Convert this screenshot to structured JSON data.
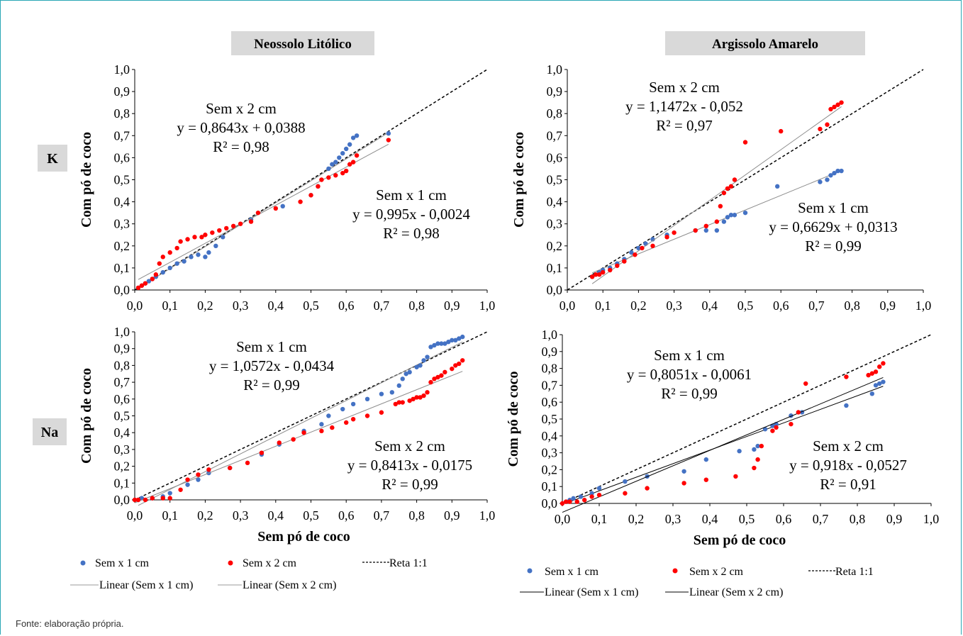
{
  "caption": "Fonte: elaboração própria.",
  "columns": [
    "Neossolo Litólico",
    "Argissolo Amarelo"
  ],
  "rows": [
    "K",
    "Na"
  ],
  "colors": {
    "s1": "#4472c4",
    "s2": "#ff0000",
    "header_bg": "#d9d9d9",
    "frame": "#2aa7b5"
  },
  "legend": {
    "left": {
      "s1": "Sem x 1 cm",
      "s2": "Sem x 2 cm",
      "ref": "Reta 1:1",
      "lin1": "Linear (Sem x 1 cm)",
      "lin2": "Linear (Sem x 2 cm)"
    },
    "right": {
      "s1": "Sem x 1 cm",
      "s2": "Sem x 2 cm",
      "ref": "Reta 1:1",
      "lin1": "Linear (Sem x 1 cm)",
      "lin2": "Linear (Sem x 2 cm)"
    }
  },
  "chart_data": [
    {
      "id": "NL-K",
      "type": "scatter",
      "xlim": [
        0,
        1
      ],
      "ylim": [
        0,
        1
      ],
      "xticks": [
        "0,0",
        "0,1",
        "0,2",
        "0,3",
        "0,4",
        "0,5",
        "0,6",
        "0,7",
        "0,8",
        "0,9",
        "1,0"
      ],
      "yticks": [
        "0,0",
        "0,1",
        "0,2",
        "0,3",
        "0,4",
        "0,5",
        "0,6",
        "0,7",
        "0,8",
        "0,9",
        "1,0"
      ],
      "ylabel": "Com pó de coco",
      "xlabel": "",
      "annotations": [
        {
          "lines": [
            "Sem x 2 cm",
            "y = 0,8643x + 0,0388",
            "R² = 0,98"
          ],
          "pos": "upper-left"
        },
        {
          "lines": [
            "Sem x 1 cm",
            "y = 0,995x - 0,0024",
            "R² = 0,98"
          ],
          "pos": "lower-right"
        }
      ],
      "series": [
        {
          "name": "Sem x 1 cm",
          "trend": [
            0.995,
            -0.0024
          ],
          "trend_style": "thin-gray",
          "x": [
            0.01,
            0.02,
            0.03,
            0.04,
            0.05,
            0.06,
            0.08,
            0.1,
            0.12,
            0.14,
            0.16,
            0.18,
            0.2,
            0.21,
            0.23,
            0.25,
            0.33,
            0.42,
            0.5,
            0.52,
            0.55,
            0.56,
            0.57,
            0.58,
            0.59,
            0.6,
            0.61,
            0.62,
            0.63,
            0.72
          ],
          "y": [
            0.01,
            0.02,
            0.03,
            0.04,
            0.05,
            0.06,
            0.08,
            0.1,
            0.12,
            0.13,
            0.15,
            0.16,
            0.15,
            0.17,
            0.2,
            0.24,
            0.32,
            0.38,
            0.43,
            0.47,
            0.55,
            0.57,
            0.58,
            0.6,
            0.62,
            0.64,
            0.66,
            0.69,
            0.7,
            0.71
          ]
        },
        {
          "name": "Sem x 2 cm",
          "trend": [
            0.8643,
            0.0388
          ],
          "trend_style": "thin-gray",
          "x": [
            0.01,
            0.02,
            0.03,
            0.05,
            0.06,
            0.07,
            0.08,
            0.1,
            0.12,
            0.13,
            0.15,
            0.17,
            0.19,
            0.2,
            0.22,
            0.24,
            0.26,
            0.28,
            0.3,
            0.33,
            0.35,
            0.4,
            0.47,
            0.5,
            0.52,
            0.53,
            0.55,
            0.57,
            0.59,
            0.6,
            0.61,
            0.62,
            0.63,
            0.72
          ],
          "y": [
            0.01,
            0.02,
            0.03,
            0.05,
            0.07,
            0.12,
            0.15,
            0.17,
            0.19,
            0.22,
            0.23,
            0.24,
            0.24,
            0.25,
            0.26,
            0.27,
            0.28,
            0.29,
            0.3,
            0.31,
            0.35,
            0.37,
            0.4,
            0.43,
            0.47,
            0.5,
            0.51,
            0.52,
            0.53,
            0.54,
            0.57,
            0.58,
            0.61,
            0.68
          ]
        }
      ]
    },
    {
      "id": "AA-K",
      "type": "scatter",
      "xlim": [
        0,
        1
      ],
      "ylim": [
        0,
        1
      ],
      "xticks": [
        "0,0",
        "0,1",
        "0,2",
        "0,3",
        "0,4",
        "0,5",
        "0,6",
        "0,7",
        "0,8",
        "0,9",
        "1,0"
      ],
      "yticks": [
        "0,0",
        "0,1",
        "0,2",
        "0,3",
        "0,4",
        "0,5",
        "0,6",
        "0,7",
        "0,8",
        "0,9",
        "1,0"
      ],
      "ylabel": "Com pó de coco",
      "xlabel": "",
      "annotations": [
        {
          "lines": [
            "Sem x 2 cm",
            "y = 1,1472x - 0,052",
            "R² = 0,97"
          ],
          "pos": "upper-left"
        },
        {
          "lines": [
            "Sem x 1 cm",
            "y = 0,6629x + 0,0313",
            "R² = 0,99"
          ],
          "pos": "lower-right"
        }
      ],
      "series": [
        {
          "name": "Sem x 1 cm",
          "trend": [
            0.6629,
            0.0313
          ],
          "trend_style": "thin-gray",
          "x": [
            0.07,
            0.08,
            0.09,
            0.1,
            0.12,
            0.14,
            0.16,
            0.18,
            0.2,
            0.22,
            0.24,
            0.28,
            0.36,
            0.39,
            0.42,
            0.44,
            0.45,
            0.46,
            0.47,
            0.5,
            0.59,
            0.71,
            0.73,
            0.74,
            0.75,
            0.76,
            0.77
          ],
          "y": [
            0.06,
            0.07,
            0.08,
            0.09,
            0.1,
            0.12,
            0.14,
            0.17,
            0.19,
            0.21,
            0.23,
            0.25,
            0.27,
            0.27,
            0.27,
            0.31,
            0.33,
            0.34,
            0.34,
            0.35,
            0.47,
            0.49,
            0.5,
            0.52,
            0.53,
            0.54,
            0.54
          ]
        },
        {
          "name": "Sem x 2 cm",
          "trend": [
            1.1472,
            -0.052
          ],
          "trend_style": "thin-gray",
          "x": [
            0.07,
            0.08,
            0.09,
            0.1,
            0.12,
            0.14,
            0.16,
            0.19,
            0.21,
            0.24,
            0.28,
            0.3,
            0.36,
            0.39,
            0.42,
            0.43,
            0.44,
            0.45,
            0.46,
            0.47,
            0.5,
            0.6,
            0.71,
            0.73,
            0.74,
            0.75,
            0.76,
            0.77
          ],
          "y": [
            0.06,
            0.07,
            0.07,
            0.08,
            0.09,
            0.11,
            0.13,
            0.16,
            0.19,
            0.2,
            0.24,
            0.26,
            0.27,
            0.29,
            0.31,
            0.38,
            0.44,
            0.46,
            0.47,
            0.5,
            0.67,
            0.72,
            0.73,
            0.75,
            0.82,
            0.83,
            0.84,
            0.85
          ]
        }
      ]
    },
    {
      "id": "NL-Na",
      "type": "scatter",
      "xlim": [
        0,
        1
      ],
      "ylim": [
        0,
        1
      ],
      "xticks": [
        "0,0",
        "0,1",
        "0,2",
        "0,3",
        "0,4",
        "0,5",
        "0,6",
        "0,7",
        "0,8",
        "0,9",
        "1,0"
      ],
      "yticks": [
        "0,0",
        "0,1",
        "0,2",
        "0,3",
        "0,4",
        "0,5",
        "0,6",
        "0,7",
        "0,8",
        "0,9",
        "1,0"
      ],
      "ylabel": "Com pó de coco",
      "xlabel": "Sem pó de coco",
      "annotations": [
        {
          "lines": [
            "Sem x 1 cm",
            "y = 1,0572x - 0,0434",
            "R² = 0,99"
          ],
          "pos": "upper-left"
        },
        {
          "lines": [
            "Sem x 2 cm",
            "y = 0,8413x - 0,0175",
            "R² = 0,99"
          ],
          "pos": "lower-right"
        }
      ],
      "series": [
        {
          "name": "Sem x 1 cm",
          "trend": [
            1.0572,
            -0.0434
          ],
          "trend_style": "thin-gray",
          "x": [
            0.01,
            0.02,
            0.05,
            0.08,
            0.1,
            0.15,
            0.18,
            0.21,
            0.27,
            0.36,
            0.41,
            0.48,
            0.53,
            0.55,
            0.59,
            0.62,
            0.66,
            0.7,
            0.73,
            0.75,
            0.76,
            0.77,
            0.78,
            0.8,
            0.81,
            0.82,
            0.83,
            0.84,
            0.85,
            0.86,
            0.87,
            0.88,
            0.89,
            0.9,
            0.91,
            0.92,
            0.93
          ],
          "y": [
            0.0,
            0.01,
            0.01,
            0.02,
            0.04,
            0.09,
            0.12,
            0.16,
            0.19,
            0.27,
            0.33,
            0.41,
            0.45,
            0.5,
            0.54,
            0.57,
            0.6,
            0.63,
            0.64,
            0.68,
            0.72,
            0.75,
            0.76,
            0.79,
            0.8,
            0.83,
            0.85,
            0.91,
            0.92,
            0.93,
            0.93,
            0.93,
            0.94,
            0.95,
            0.95,
            0.96,
            0.97
          ]
        },
        {
          "name": "Sem x 2 cm",
          "trend": [
            0.8413,
            -0.0175
          ],
          "trend_style": "thin-gray",
          "x": [
            0.0,
            0.01,
            0.03,
            0.05,
            0.08,
            0.1,
            0.13,
            0.15,
            0.18,
            0.21,
            0.27,
            0.32,
            0.36,
            0.41,
            0.45,
            0.48,
            0.53,
            0.56,
            0.6,
            0.62,
            0.66,
            0.7,
            0.74,
            0.75,
            0.76,
            0.78,
            0.79,
            0.8,
            0.81,
            0.82,
            0.83,
            0.84,
            0.85,
            0.86,
            0.87,
            0.88,
            0.9,
            0.91,
            0.92,
            0.93
          ],
          "y": [
            0.0,
            0.0,
            0.0,
            0.01,
            0.01,
            0.01,
            0.06,
            0.12,
            0.15,
            0.18,
            0.19,
            0.22,
            0.28,
            0.34,
            0.36,
            0.4,
            0.41,
            0.43,
            0.46,
            0.48,
            0.5,
            0.52,
            0.57,
            0.58,
            0.58,
            0.59,
            0.6,
            0.61,
            0.61,
            0.62,
            0.64,
            0.7,
            0.72,
            0.73,
            0.74,
            0.76,
            0.78,
            0.8,
            0.81,
            0.83
          ]
        }
      ]
    },
    {
      "id": "AA-Na",
      "type": "scatter",
      "xlim": [
        0,
        1
      ],
      "ylim": [
        0,
        1
      ],
      "xticks": [
        "0,0",
        "0,1",
        "0,2",
        "0,3",
        "0,4",
        "0,5",
        "0,6",
        "0,7",
        "0,8",
        "0,9",
        "1,0"
      ],
      "yticks": [
        "0,0",
        "0,1",
        "0,2",
        "0,3",
        "0,4",
        "0,5",
        "0,6",
        "0,7",
        "0,8",
        "0,9",
        "1,0"
      ],
      "ylabel": "Com pó de coco",
      "xlabel": "Sem pó de coco",
      "annotations": [
        {
          "lines": [
            "Sem x 1 cm",
            "y = 0,8051x - 0,0061",
            "R² = 0,99"
          ],
          "pos": "upper-left"
        },
        {
          "lines": [
            "Sem x 2 cm",
            "y = 0,918x - 0,0527",
            "R² = 0,91"
          ],
          "pos": "lower-right"
        }
      ],
      "series": [
        {
          "name": "Sem x 1 cm",
          "trend": [
            0.8051,
            -0.0061
          ],
          "trend_style": "black",
          "x": [
            0.01,
            0.02,
            0.03,
            0.05,
            0.08,
            0.1,
            0.17,
            0.23,
            0.33,
            0.39,
            0.48,
            0.52,
            0.53,
            0.55,
            0.57,
            0.58,
            0.62,
            0.65,
            0.77,
            0.84,
            0.85,
            0.86,
            0.87
          ],
          "y": [
            0.01,
            0.02,
            0.03,
            0.04,
            0.06,
            0.09,
            0.13,
            0.16,
            0.19,
            0.26,
            0.31,
            0.32,
            0.34,
            0.44,
            0.46,
            0.47,
            0.52,
            0.54,
            0.58,
            0.65,
            0.7,
            0.71,
            0.72
          ]
        },
        {
          "name": "Sem x 2 cm",
          "trend": [
            0.918,
            -0.0527
          ],
          "trend_style": "black",
          "x": [
            0.0,
            0.01,
            0.02,
            0.04,
            0.06,
            0.08,
            0.1,
            0.17,
            0.23,
            0.33,
            0.39,
            0.47,
            0.52,
            0.53,
            0.54,
            0.57,
            0.58,
            0.62,
            0.64,
            0.66,
            0.77,
            0.83,
            0.84,
            0.85,
            0.86,
            0.87
          ],
          "y": [
            0.0,
            0.01,
            0.01,
            0.01,
            0.02,
            0.04,
            0.05,
            0.06,
            0.09,
            0.12,
            0.14,
            0.16,
            0.21,
            0.26,
            0.34,
            0.43,
            0.45,
            0.47,
            0.54,
            0.71,
            0.75,
            0.76,
            0.77,
            0.78,
            0.81,
            0.83
          ]
        }
      ]
    }
  ]
}
